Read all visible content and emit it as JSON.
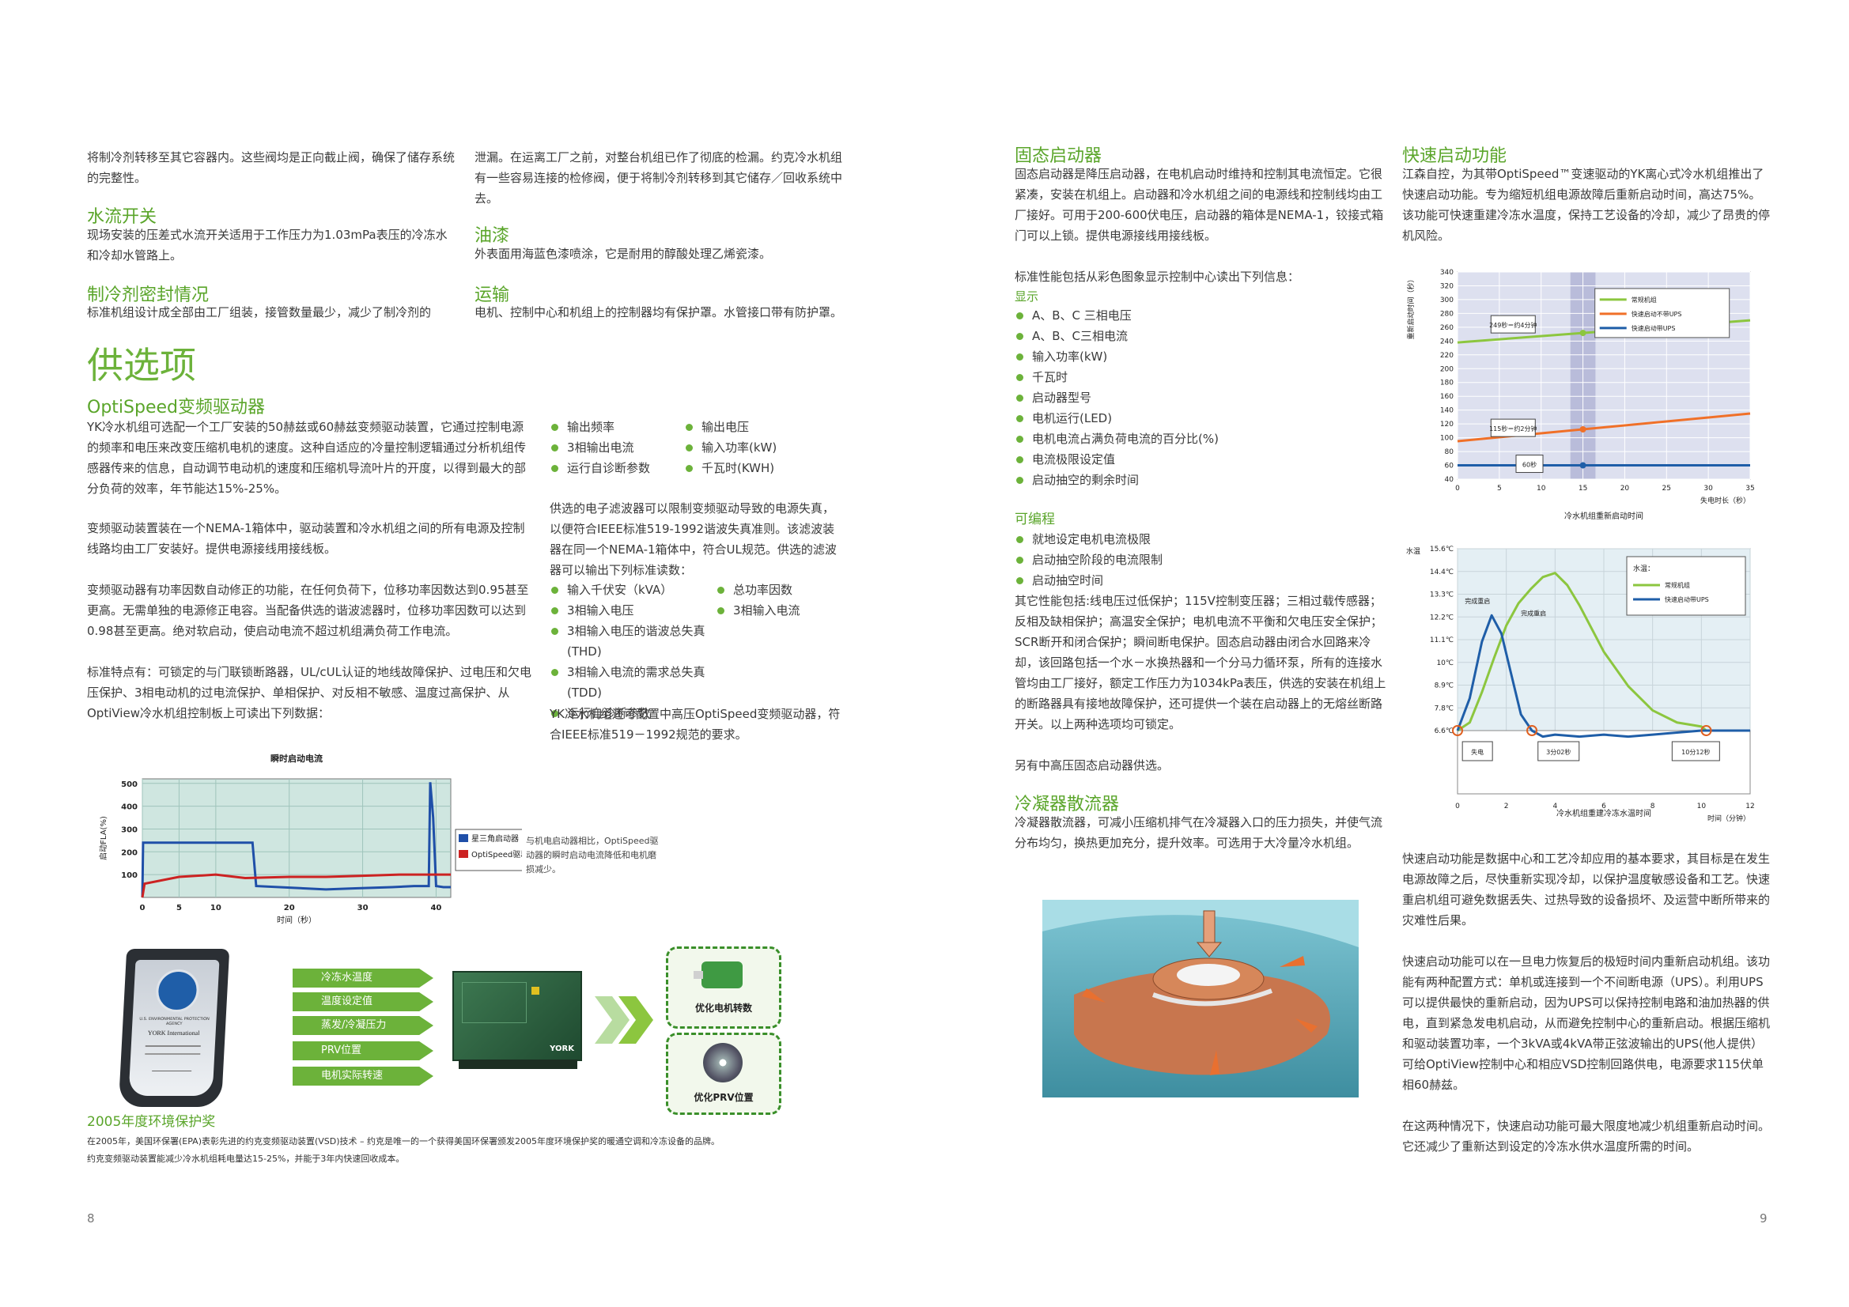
{
  "left": {
    "col1_intro": "将制冷剂转移至其它容器内。这些阀均是正向截止阀，确保了储存系统的完整性。",
    "col2_intro": "泄漏。在运离工厂之前，对整台机组已作了彻底的检漏。约克冷水机组有一些容易连接的检修阀，便于将制冷剂转移到其它储存／回收系统中去。",
    "water_switch_title": "水流开关",
    "water_switch_text": "现场安装的压差式水流开关适用于工作压力为1.03mPa表压的冷冻水和冷却水管路上。",
    "paint_title": "油漆",
    "paint_text": "外表面用海蓝色漆喷涂，它是耐用的醇酸处理乙烯瓷漆。",
    "seal_title": "制冷剂密封情况",
    "seal_text": "标准机组设计成全部由工厂组装，接管数量最少，减少了制冷剂的",
    "ship_title": "运输",
    "ship_text": "电机、控制中心和机组上的控制器均有保护罩。水管接口带有防护罩。",
    "options_title": "供选项",
    "vsd_title": "OptiSpeed变频驱动器",
    "vsd_p1": "YK冷水机组可选配一个工厂安装的50赫兹或60赫兹变频驱动装置，它通过控制电源的频率和电压来改变压缩机电机的速度。这种自适应的冷量控制逻辑通过分析机组传感器传来的信息，自动调节电动机的速度和压缩机导流叶片的开度，以得到最大的部分负荷的效率，年节能达15%-25%。",
    "vsd_p2": "变频驱动装置装在一个NEMA-1箱体中，驱动装置和冷水机组之间的所有电源及控制线路均由工厂安装好。提供电源接线用接线板。",
    "vsd_p3": "变频驱动器有功率因数自动修正的功能，在任何负荷下，位移功率因数达到0.95甚至更高。无需单独的电源修正电容。当配备供选的谐波滤器时，位移功率因数可以达到0.98甚至更高。绝对软启动，使启动电流不超过机组满负荷工作电流。",
    "vsd_p4": "标准特点有：可锁定的与门联锁断路器，UL/cUL认证的地线故障保护、过电压和欠电压保护、3相电动机的过电流保护、单相保护、对反相不敏感、温度过高保护、从OptiView冷水机组控制板上可读出下列数据：",
    "read_list_a": [
      "输出频率",
      "3相输出电流",
      "运行自诊断参数"
    ],
    "read_list_b": [
      "输出电压",
      "输入功率(kW)",
      "千瓦时(KWH)"
    ],
    "filter_p": "供选的电子滤波器可以限制变频驱动导致的电源失真，以便符合IEEE标准519-1992谐波失真准则。该滤波装器在同一个NEMA-1箱体中，符合UL规范。供选的滤波器可以输出下列标准读数：",
    "filter_list_a": [
      "输入千伏安（kVA）",
      "3相输入电压",
      "3相输入电压的谐波总失真(THD)",
      "3相输入电流的需求总失真(TDD)",
      "运行自诊断参数"
    ],
    "filter_list_b": [
      "总功率因数",
      "3相输入电流"
    ],
    "mv_p": "YK冷水机组还可配置中高压OptiSpeed变频驱动器，符合IEEE标准519－1992规范的要求。",
    "award_title": "2005年度环境保护奖",
    "award_p1": "在2005年，美国环保署(EPA)表彰先进的约克变频驱动装置(VSD)技术 – 约克是唯一的一个获得美国环保署颁发2005年度环境保护奖的暖通空调和冷冻设备的品牌。",
    "award_p2": "约克变频驱动装置能减少冷水机组耗电量达15-25%，并能于3年内快速回收成本。",
    "plaque_text": "YORK International",
    "plaque_sub": "U.S. ENVIRONMENTAL PROTECTION AGENCY",
    "flow_items": [
      "冷冻水温度",
      "温度设定值",
      "蒸发/冷凝压力",
      "PRV位置",
      "电机实际转速"
    ],
    "unit_logo": "YORK",
    "optim_motor": "优化电机转数",
    "optim_prv": "优化PRV位置",
    "page_num": "8"
  },
  "right": {
    "ss_title": "固态启动器",
    "ss_p1": "固态启动器是降压启动器，在电机启动时维持和控制其电流恒定。它很紧凑，安装在机组上。启动器和冷水机组之间的电源线和控制线均由工厂接好。可用于200-600伏电压，启动器的箱体是NEMA-1，铰接式箱门可以上锁。提供电源接线用接线板。",
    "ss_p2": "标准性能包括从彩色图象显示控制中心读出下列信息：",
    "display_title": "显示",
    "display_list": [
      "A、B、C 三相电压",
      "A、B、C三相电流",
      "输入功率(kW)",
      "千瓦时",
      "启动器型号",
      "电机运行(LED)",
      "电机电流占满负荷电流的百分比(%)",
      "电流极限设定值",
      "启动抽空的剩余时间"
    ],
    "prog_title": "可编程",
    "prog_list": [
      "就地设定电机电流极限",
      "启动抽空阶段的电流限制",
      "启动抽空时间"
    ],
    "ss_p3": "其它性能包括:线电压过低保护；115V控制变压器；三相过载传感器；反相及缺相保护；高温安全保护；电机电流不平衡和欠电压安全保护；SCR断开和闭合保护；瞬间断电保护。固态启动器由闭合水回路来冷却，该回路包括一个水－水换热器和一个分马力循环泵，所有的连接水管均由工厂接好，额定工作压力为1034kPa表压，供选的安装在机组上的断路器具有接地故障保护，还可提供一个装在启动器上的无熔丝断路开关。以上两种选项均可锁定。",
    "ss_p4": "另有中高压固态启动器供选。",
    "cond_title": "冷凝器散流器",
    "cond_p": "冷凝器散流器，可减小压缩机排气在冷凝器入口的压力损失，并使气流分布均匀，换热更加充分，提升效率。可选用于大冷量冷水机组。",
    "qs_title": "快速启动功能",
    "qs_p1": "江森自控，为其带OptiSpeed™变速驱动的YK离心式冷水机组推出了快速启动功能。专为缩短机组电源故障后重新启动时间，高达75%。该功能可快速重建冷冻水温度，保持工艺设备的冷却，减少了昂贵的停机风险。",
    "qs_p2": "快速启动功能是数据中心和工艺冷却应用的基本要求，其目标是在发生电源故障之后，尽快重新实现冷却，以保护温度敏感设备和工艺。快速重启机组可避免数据丢失、过热导致的设备损坏、及运营中断所带来的灾难性后果。",
    "qs_p3": "快速启动功能可以在一旦电力恢复后的极短时间内重新启动机组。该功能有两种配置方式：单机或连接到一个不间断电源（UPS）。利用UPS可以提供最快的重新启动，因为UPS可以保持控制电路和油加热器的供电，直到紧急发电机启动，从而避免控制中心的重新启动。根据压缩机和驱动装置功率，一个3kVA或4kVA带正弦波输出的UPS(他人提供）可给OptiView控制中心和相应VSD控制回路供电，电源要求115伏单相60赫兹。",
    "qs_p4": "在这两种情况下，快速启动功能可最大限度地减少机组重新启动时间。它还减少了重新达到设定的冷冻水供水温度所需的时间。",
    "page_num": "9"
  },
  "chart_data": [
    {
      "type": "line",
      "title": "瞬时启动电流",
      "xlabel": "时间（秒）",
      "ylabel": "启动FLA(%)",
      "xlim": [
        0,
        42
      ],
      "ylim": [
        0,
        520
      ],
      "xticks": [
        "0",
        "5",
        "10",
        "20",
        "30",
        "40"
      ],
      "yticks": [
        "100",
        "200",
        "300",
        "400",
        "500"
      ],
      "legend_position": "right",
      "annotation": "与机电启动器相比，OptiSpeed驱动器的瞬时启动电流降低和电机磨损减少。",
      "series": [
        {
          "name": "星三角启动器",
          "color": "#1f4fa8",
          "x": [
            0,
            0.1,
            13.5,
            15,
            15.5,
            25,
            29,
            34,
            37,
            39,
            39.2,
            39.6,
            40,
            41,
            42
          ],
          "y": [
            0,
            240,
            240,
            240,
            50,
            35,
            40,
            45,
            50,
            50,
            505,
            350,
            50,
            45,
            45
          ]
        },
        {
          "name": "OptiSpeed驱动器",
          "color": "#cc2222",
          "x": [
            0,
            0.3,
            5,
            10,
            14,
            20,
            25,
            30,
            35,
            40,
            42
          ],
          "y": [
            0,
            60,
            90,
            100,
            85,
            90,
            90,
            95,
            100,
            100,
            100
          ]
        }
      ]
    },
    {
      "type": "line",
      "title": "冷水机组重新启动时间",
      "xlabel": "失电时长（秒）",
      "ylabel": "重新启动时间（秒）",
      "xlim": [
        0,
        35
      ],
      "ylim": [
        40,
        340
      ],
      "xticks": [
        "0",
        "5",
        "10",
        "15",
        "20",
        "25",
        "30",
        "35"
      ],
      "yticks": [
        "40",
        "60",
        "80",
        "100",
        "120",
        "140",
        "160",
        "180",
        "200",
        "220",
        "240",
        "260",
        "280",
        "300",
        "320",
        "340"
      ],
      "legend_position": "top-right",
      "annotations": [
        "249秒＝约4分钟",
        "115秒＝约2分钟",
        "60秒"
      ],
      "series": [
        {
          "name": "常规机组",
          "color": "#8cc63f",
          "x": [
            0,
            35
          ],
          "y": [
            238,
            270
          ]
        },
        {
          "name": "快速启动不带UPS",
          "color": "#f07028",
          "x": [
            0,
            35
          ],
          "y": [
            95,
            135
          ]
        },
        {
          "name": "快速启动带UPS",
          "color": "#1f5ea8",
          "x": [
            0,
            35
          ],
          "y": [
            60,
            60
          ]
        }
      ]
    },
    {
      "type": "line",
      "title": "冷水机组重建冷冻水温时间",
      "xlabel": "时间（分钟）",
      "ylabel": "水温",
      "legend_title": "水温：",
      "legend_position": "top-right",
      "xlim": [
        0,
        12
      ],
      "ylim": [
        6.6,
        15.6
      ],
      "xticks": [
        "0",
        "2",
        "4",
        "6",
        "8",
        "10",
        "12"
      ],
      "yticks": [
        "6.6℃",
        "7.8℃",
        "8.9℃",
        "10℃",
        "11.1℃",
        "12.2℃",
        "13.3℃",
        "14.4℃",
        "15.6℃"
      ],
      "annotations": [
        "完成重启",
        "完成重启",
        "失电",
        "3分02秒",
        "10分12秒"
      ],
      "series": [
        {
          "name": "常规机组",
          "color": "#8cc63f",
          "x": [
            0,
            0.5,
            1,
            1.5,
            2,
            2.5,
            3,
            3.5,
            4,
            4.5,
            5,
            6,
            7,
            8,
            9,
            10,
            10.2,
            11,
            12
          ],
          "y": [
            6.6,
            7.0,
            8.5,
            10.2,
            11.8,
            12.9,
            13.6,
            14.2,
            14.4,
            13.8,
            12.8,
            10.5,
            8.8,
            7.6,
            7.0,
            6.8,
            6.6,
            6.6,
            6.6
          ]
        },
        {
          "name": "快速启动带UPS",
          "color": "#1f5ea8",
          "x": [
            0,
            0.5,
            1,
            1.4,
            1.8,
            2.2,
            2.6,
            3.05,
            3.5,
            4,
            5,
            6,
            7,
            8,
            9,
            10,
            11,
            12
          ],
          "y": [
            6.6,
            8.2,
            11.0,
            12.3,
            11.4,
            9.4,
            7.4,
            6.6,
            6.3,
            6.4,
            6.3,
            6.4,
            6.3,
            6.4,
            6.5,
            6.6,
            6.6,
            6.6
          ]
        }
      ]
    }
  ]
}
